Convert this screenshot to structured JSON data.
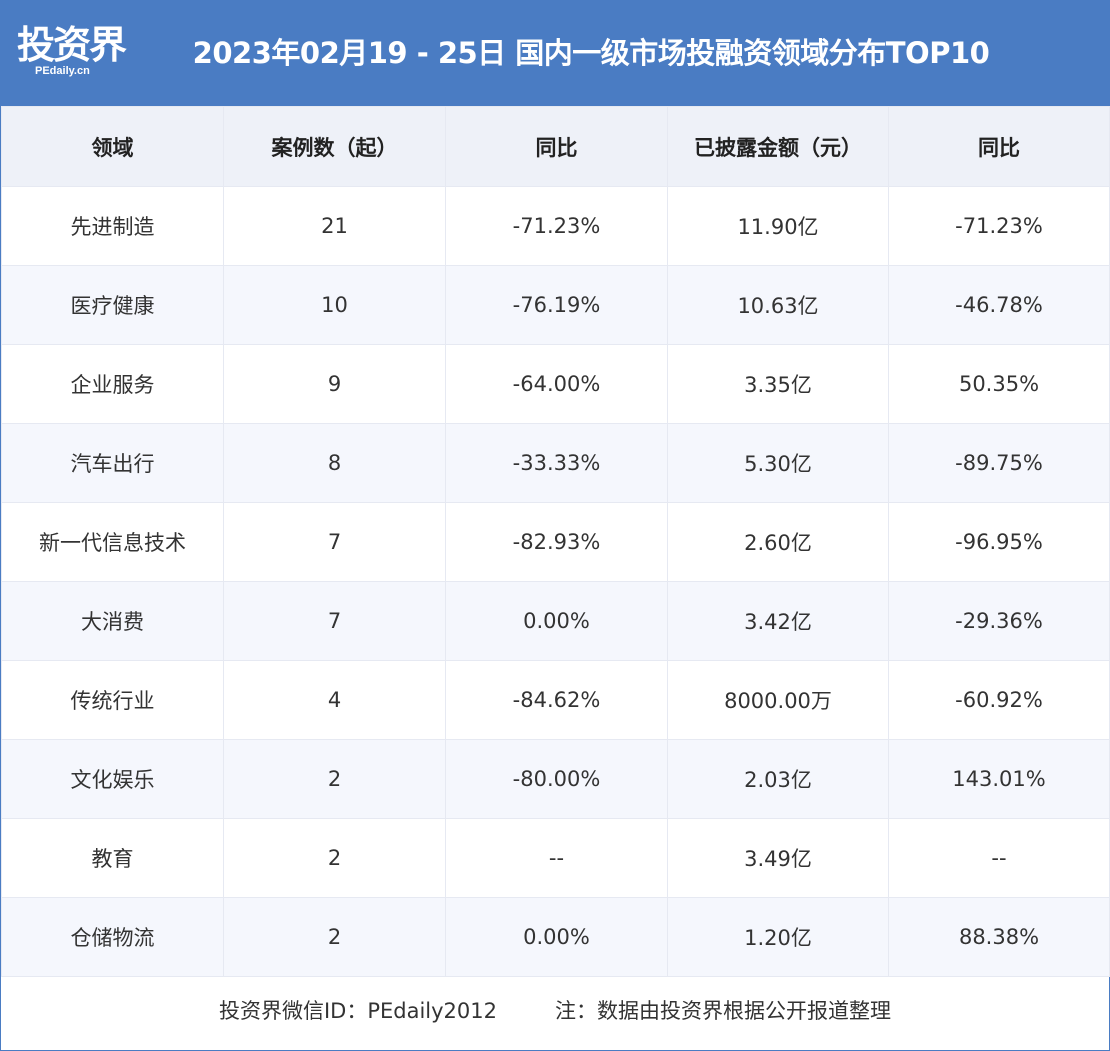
{
  "header": {
    "logo_main": "投资界",
    "logo_sub": "PEdaily.cn",
    "title": "2023年02月19 - 25日 国内一级市场投融资领域分布TOP10"
  },
  "table": {
    "columns": [
      "领域",
      "案例数（起）",
      "同比",
      "已披露金额（元）",
      "同比"
    ],
    "rows": [
      [
        "先进制造",
        "21",
        "-71.23%",
        "11.90亿",
        "-71.23%"
      ],
      [
        "医疗健康",
        "10",
        "-76.19%",
        "10.63亿",
        "-46.78%"
      ],
      [
        "企业服务",
        "9",
        "-64.00%",
        "3.35亿",
        "50.35%"
      ],
      [
        "汽车出行",
        "8",
        "-33.33%",
        "5.30亿",
        "-89.75%"
      ],
      [
        "新一代信息技术",
        "7",
        "-82.93%",
        "2.60亿",
        "-96.95%"
      ],
      [
        "大消费",
        "7",
        "0.00%",
        "3.42亿",
        "-29.36%"
      ],
      [
        "传统行业",
        "4",
        "-84.62%",
        "8000.00万",
        "-60.92%"
      ],
      [
        "文化娱乐",
        "2",
        "-80.00%",
        "2.03亿",
        "143.01%"
      ],
      [
        "教育",
        "2",
        "--",
        "3.49亿",
        "--"
      ],
      [
        "仓储物流",
        "2",
        "0.00%",
        "1.20亿",
        "88.38%"
      ]
    ]
  },
  "footer": {
    "wechat": "投资界微信ID：PEdaily2012",
    "note": "注：数据由投资界根据公开报道整理"
  },
  "colors": {
    "banner": "#4a7cc3",
    "header_row": "#eef1f8",
    "stripe": "#f5f7fd"
  }
}
